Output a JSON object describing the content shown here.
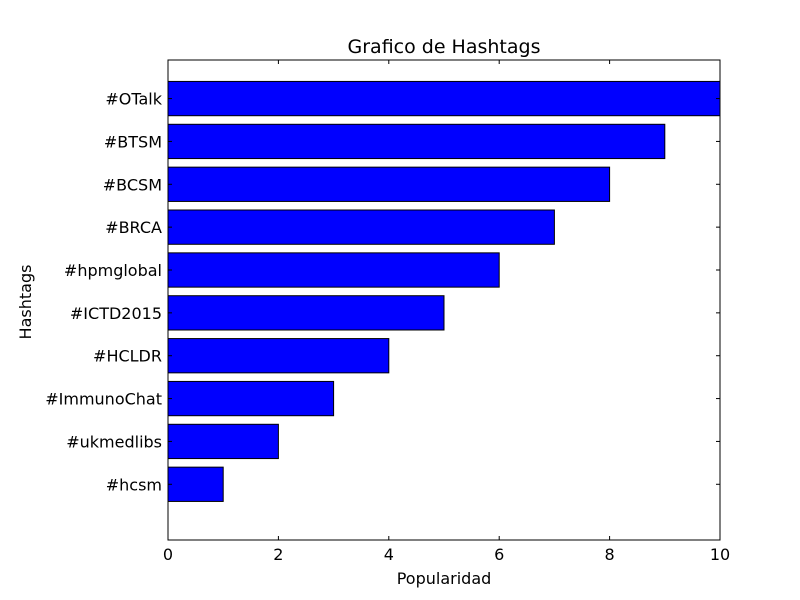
{
  "chart_data": {
    "type": "bar",
    "orientation": "horizontal",
    "title": "Grafico de Hashtags",
    "xlabel": "Popularidad",
    "ylabel": "Hashtags",
    "categories": [
      "#OTalk",
      "#BTSM",
      "#BCSM",
      "#BRCA",
      "#hpmglobal",
      "#ICTD2015",
      "#HCLDR",
      "#ImmunoChat",
      "#ukmedlibs",
      "#hcsm"
    ],
    "values": [
      10,
      9,
      8,
      7,
      6,
      5,
      4,
      3,
      2,
      1
    ],
    "xlim": [
      0,
      10
    ],
    "xticks": [
      0,
      2,
      4,
      6,
      8,
      10
    ],
    "xtick_labels": [
      "0",
      "2",
      "4",
      "6",
      "8",
      "10"
    ],
    "grid": false,
    "colors": {
      "bar_fill": "#0000ff",
      "bar_edge": "#000000"
    }
  }
}
